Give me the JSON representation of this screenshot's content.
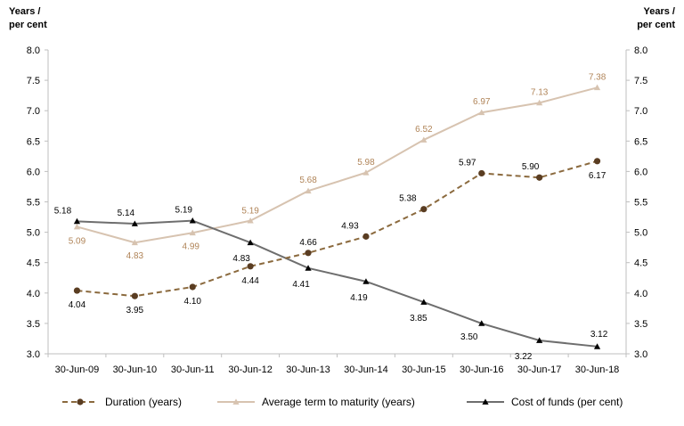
{
  "chart_data": {
    "type": "line",
    "title": "",
    "ylabel_left": [
      "Years /",
      "per cent"
    ],
    "ylabel_right": [
      "Years /",
      "per cent"
    ],
    "ylim": [
      3.0,
      8.0
    ],
    "yticks": [
      "3.0",
      "3.5",
      "4.0",
      "4.5",
      "5.0",
      "5.5",
      "6.0",
      "6.5",
      "7.0",
      "7.5",
      "8.0"
    ],
    "categories": [
      "30-Jun-09",
      "30-Jun-10",
      "30-Jun-11",
      "30-Jun-12",
      "30-Jun-13",
      "30-Jun-14",
      "30-Jun-15",
      "30-Jun-16",
      "30-Jun-17",
      "30-Jun-18"
    ],
    "grid": false,
    "legend_position": "bottom",
    "series": [
      {
        "name": "Duration (years)",
        "color": "#8B6A3E",
        "marker": "circle",
        "line_style": "dashed",
        "values": [
          4.04,
          3.95,
          4.1,
          4.44,
          4.66,
          4.93,
          5.38,
          5.97,
          5.9,
          6.17
        ],
        "labels": [
          "4.04",
          "3.95",
          "4.10",
          "4.44",
          "4.66",
          "4.93",
          "5.38",
          "5.97",
          "5.90",
          "6.17"
        ]
      },
      {
        "name": "Average term to maturity (years)",
        "color": "#D7C3B0",
        "label_color": "#B08458",
        "marker": "triangle",
        "line_style": "solid",
        "values": [
          5.09,
          4.83,
          4.99,
          5.19,
          5.68,
          5.98,
          6.52,
          6.97,
          7.13,
          7.38
        ],
        "labels": [
          "5.09",
          "4.83",
          "4.99",
          "5.19",
          "5.68",
          "5.98",
          "6.52",
          "6.97",
          "7.13",
          "7.38"
        ]
      },
      {
        "name": "Cost of funds (per cent)",
        "color": "#6E6E6E",
        "marker": "triangle",
        "line_style": "solid",
        "values": [
          5.18,
          5.14,
          5.19,
          4.83,
          4.41,
          4.19,
          3.85,
          3.5,
          3.22,
          3.12
        ],
        "labels": [
          "5.18",
          "5.14",
          "5.19",
          "4.83",
          "4.41",
          "4.19",
          "3.85",
          "3.50",
          "3.22",
          "3.12"
        ]
      }
    ]
  }
}
